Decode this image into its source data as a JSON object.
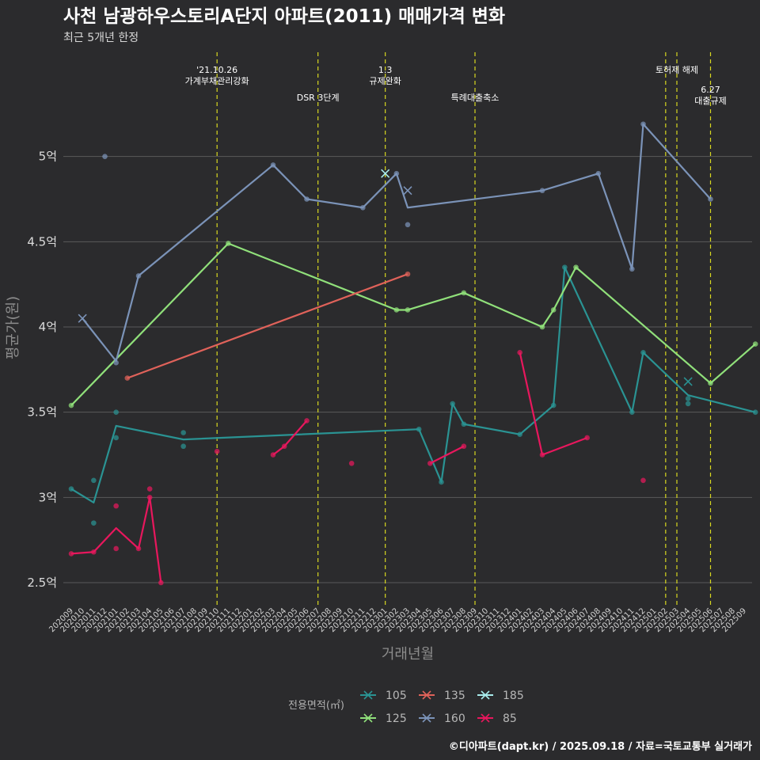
{
  "chart_data": {
    "type": "line",
    "title": "사천 남광하우스토리A단지 아파트(2011) 매매가격 변화",
    "subtitle": "최근 5개년 한정",
    "xlabel": "거래년월",
    "ylabel": "평균가(원)",
    "ylim": [
      2.37,
      5.63
    ],
    "yticks": [
      2.5,
      3,
      3.5,
      4,
      4.5,
      5
    ],
    "ytick_labels": [
      "2.5억",
      "3억",
      "3.5억",
      "4억",
      "4.5억",
      "5억"
    ],
    "xlabels": [
      "202009",
      "202010",
      "202011",
      "202012",
      "202101",
      "202102",
      "202103",
      "202104",
      "202105",
      "202106",
      "202107",
      "202108",
      "202109",
      "202110",
      "202111",
      "202112",
      "202201",
      "202202",
      "202203",
      "202204",
      "202205",
      "202206",
      "202207",
      "202208",
      "202209",
      "202210",
      "202211",
      "202212",
      "202301",
      "202302",
      "202303",
      "202304",
      "202305",
      "202306",
      "202307",
      "202308",
      "202309",
      "202310",
      "202311",
      "202312",
      "202401",
      "202402",
      "202403",
      "202404",
      "202405",
      "202406",
      "202407",
      "202408",
      "202409",
      "202410",
      "202411",
      "202412",
      "202501",
      "202502",
      "202503",
      "202504",
      "202505",
      "202506",
      "202507",
      "202508",
      "202509"
    ],
    "events": [
      {
        "x": 13,
        "label": "'21.10.26 가계부채관리강화",
        "lines": [
          "'21.10.26",
          "가계부채관리강화"
        ],
        "row": 0
      },
      {
        "x": 22,
        "label": "DSR 3단계",
        "lines": [
          "DSR 3단계"
        ],
        "row": 1
      },
      {
        "x": 28,
        "label": "1.3 규제완화",
        "lines": [
          "1.3",
          "규제완화"
        ],
        "row": 0
      },
      {
        "x": 36,
        "label": "특례대출축소",
        "lines": [
          "특례대출축소"
        ],
        "row": 1
      },
      {
        "x": 53,
        "label": "",
        "lines": [],
        "row": 0
      },
      {
        "x": 54,
        "label": "토허제 해제",
        "lines": [
          "토허제 해제"
        ],
        "row": 0
      },
      {
        "x": 57,
        "label": "6.27 대출규제",
        "lines": [
          "6.27",
          "대출규제"
        ],
        "row": 1
      }
    ],
    "series": [
      {
        "name": "105",
        "color": "#2a9393",
        "line": [
          [
            0,
            3.05
          ],
          [
            2,
            2.97
          ],
          [
            4,
            3.42
          ],
          [
            10,
            3.34
          ],
          [
            31,
            3.4
          ],
          [
            33,
            3.09
          ],
          [
            34,
            3.55
          ],
          [
            35,
            3.43
          ],
          [
            40,
            3.37
          ],
          [
            43,
            3.54
          ],
          [
            44,
            4.35
          ],
          [
            50,
            3.5
          ],
          [
            51,
            3.85
          ],
          [
            55,
            3.6
          ],
          [
            61,
            3.5
          ]
        ],
        "points": [
          [
            0,
            3.05
          ],
          [
            2,
            3.1
          ],
          [
            2,
            2.85
          ],
          [
            4,
            3.5
          ],
          [
            4,
            3.35
          ],
          [
            10,
            3.38
          ],
          [
            10,
            3.3
          ],
          [
            31,
            3.4
          ],
          [
            33,
            3.09
          ],
          [
            34,
            3.55
          ],
          [
            35,
            3.43
          ],
          [
            40,
            3.37
          ],
          [
            43,
            3.54
          ],
          [
            44,
            4.35
          ],
          [
            50,
            3.5
          ],
          [
            51,
            3.85
          ],
          [
            55,
            3.58
          ],
          [
            55,
            3.55
          ],
          [
            61,
            3.5
          ]
        ],
        "crosses": [
          [
            55,
            3.68
          ]
        ]
      },
      {
        "name": "125",
        "color": "#90e07a",
        "line": [
          [
            0,
            3.54
          ],
          [
            14,
            4.49
          ],
          [
            29,
            4.1
          ],
          [
            30,
            4.1
          ],
          [
            35,
            4.2
          ],
          [
            42,
            4.0
          ],
          [
            43,
            4.1
          ],
          [
            45,
            4.35
          ],
          [
            57,
            3.67
          ],
          [
            61,
            3.9
          ]
        ],
        "points": [
          [
            0,
            3.54
          ],
          [
            14,
            4.49
          ],
          [
            29,
            4.1
          ],
          [
            30,
            4.1
          ],
          [
            35,
            4.2
          ],
          [
            42,
            4.0
          ],
          [
            43,
            4.1
          ],
          [
            45,
            4.35
          ],
          [
            57,
            3.67
          ],
          [
            61,
            3.9
          ]
        ],
        "crosses": []
      },
      {
        "name": "135",
        "color": "#e0625a",
        "line": [
          [
            5,
            3.7
          ],
          [
            30,
            4.31
          ]
        ],
        "points": [
          [
            5,
            3.7
          ],
          [
            30,
            4.31
          ]
        ],
        "crosses": []
      },
      {
        "name": "160",
        "color": "#7b93b8",
        "line": [
          [
            1,
            4.05
          ],
          [
            4,
            3.8
          ],
          [
            6,
            4.3
          ],
          [
            18,
            4.95
          ],
          [
            21,
            4.75
          ],
          [
            26,
            4.7
          ],
          [
            29,
            4.9
          ],
          [
            30,
            4.7
          ],
          [
            42,
            4.8
          ],
          [
            47,
            4.9
          ],
          [
            50,
            4.34
          ],
          [
            51,
            5.19
          ],
          [
            57,
            4.75
          ]
        ],
        "points": [
          [
            3,
            5.0
          ],
          [
            4,
            3.79
          ],
          [
            6,
            4.3
          ],
          [
            18,
            4.95
          ],
          [
            21,
            4.75
          ],
          [
            26,
            4.7
          ],
          [
            29,
            4.9
          ],
          [
            30,
            4.6
          ],
          [
            42,
            4.8
          ],
          [
            47,
            4.9
          ],
          [
            50,
            4.34
          ],
          [
            51,
            5.19
          ],
          [
            57,
            4.75
          ]
        ],
        "crosses": [
          [
            1,
            4.05
          ],
          [
            30,
            4.8
          ]
        ]
      },
      {
        "name": "185",
        "color": "#a8ecec",
        "line": [],
        "points": [],
        "crosses": [
          [
            28,
            4.9
          ]
        ]
      },
      {
        "name": "85",
        "color": "#e8175d",
        "line": [
          [
            0,
            2.67
          ],
          [
            2,
            2.68
          ],
          [
            4,
            2.82
          ],
          [
            6,
            2.7
          ],
          [
            7,
            3.0
          ],
          [
            8,
            2.5
          ]
        ],
        "line2": [
          [
            18,
            3.25
          ],
          [
            19,
            3.3
          ],
          [
            21,
            3.45
          ]
        ],
        "line3": [
          [
            32,
            3.2
          ],
          [
            35,
            3.3
          ]
        ],
        "line4": [
          [
            40,
            3.85
          ],
          [
            42,
            3.25
          ],
          [
            46,
            3.35
          ]
        ],
        "points": [
          [
            0,
            2.67
          ],
          [
            2,
            2.68
          ],
          [
            4,
            2.95
          ],
          [
            4,
            2.7
          ],
          [
            6,
            2.7
          ],
          [
            7,
            3.05
          ],
          [
            7,
            3.0
          ],
          [
            8,
            2.5
          ],
          [
            13,
            3.27
          ],
          [
            18,
            3.25
          ],
          [
            19,
            3.3
          ],
          [
            21,
            3.45
          ],
          [
            25,
            3.2
          ],
          [
            32,
            3.2
          ],
          [
            35,
            3.3
          ],
          [
            40,
            3.85
          ],
          [
            42,
            3.25
          ],
          [
            46,
            3.35
          ],
          [
            51,
            3.1
          ]
        ],
        "crosses": []
      }
    ]
  },
  "legend": {
    "title": "전용면적(㎡)",
    "items": [
      "105",
      "135",
      "185",
      "125",
      "160",
      "85"
    ]
  },
  "caption": "©디아파트(dapt.kr) / 2025.09.18 / 자료=국토교통부 실거래가"
}
